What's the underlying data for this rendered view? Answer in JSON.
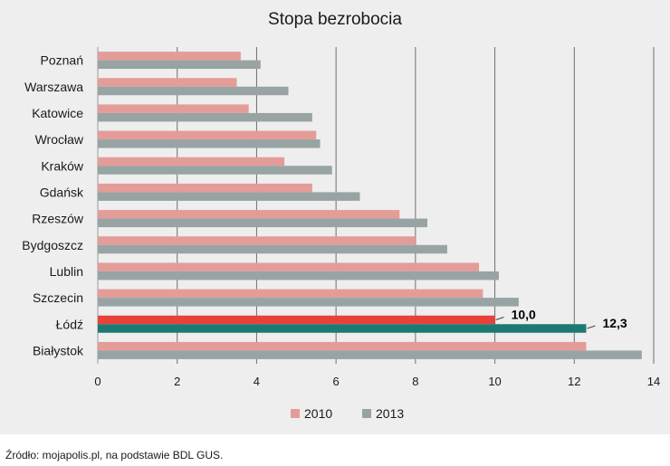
{
  "chart_data": {
    "type": "bar",
    "orientation": "horizontal",
    "title": "Stopa bezrobocia",
    "categories": [
      "Poznań",
      "Warszawa",
      "Katowice",
      "Wrocław",
      "Kraków",
      "Gdańsk",
      "Rzeszów",
      "Bydgoszcz",
      "Lublin",
      "Szczecin",
      "Łódź",
      "Białystok"
    ],
    "series": [
      {
        "name": "2010",
        "color": "#e49c98",
        "values": [
          3.6,
          3.5,
          3.8,
          5.5,
          4.7,
          5.4,
          7.6,
          8.0,
          9.6,
          9.7,
          10.0,
          12.3
        ]
      },
      {
        "name": "2013",
        "color": "#98a4a4",
        "values": [
          4.1,
          4.8,
          5.4,
          5.6,
          5.9,
          6.6,
          8.3,
          8.8,
          10.1,
          10.6,
          12.3,
          13.7
        ]
      }
    ],
    "highlight": {
      "category": "Łódź",
      "colors": [
        "#e8413a",
        "#1d7a72"
      ],
      "labels": [
        "10,0",
        "12,3"
      ]
    },
    "xlim": [
      0,
      14
    ],
    "xticks": [
      0,
      2,
      4,
      6,
      8,
      10,
      12,
      14
    ],
    "grid": true,
    "legend": "bottom-center",
    "xlabel": "",
    "ylabel": ""
  },
  "source": "Źródło: mojapolis.pl, na podstawie BDL GUS."
}
